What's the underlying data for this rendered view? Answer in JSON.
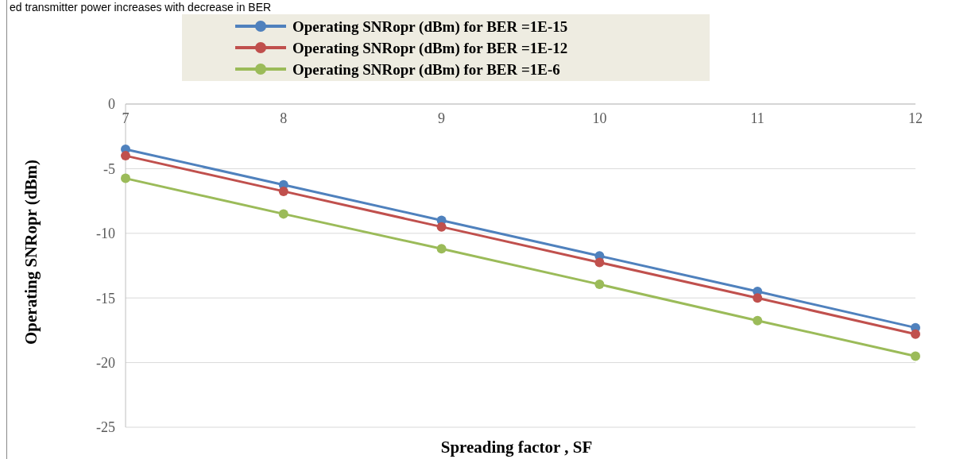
{
  "chart_data": {
    "type": "line",
    "title": "ed transmitter power increases with decrease in BER",
    "xlabel": "Spreading factor , SF",
    "ylabel": "Operating SNRopr (dBm)",
    "x": [
      7,
      8,
      9,
      10,
      11,
      12
    ],
    "series": [
      {
        "name": "Operating SNRopr (dBm) for BER =1E-15",
        "color": "#4f81bd",
        "values": [
          -3.5,
          -6.25,
          -9,
          -11.75,
          -14.5,
          -17.3
        ]
      },
      {
        "name": "Operating SNRopr (dBm) for BER =1E-12",
        "color": "#c0504d",
        "values": [
          -4,
          -6.75,
          -9.5,
          -12.25,
          -15,
          -17.8
        ]
      },
      {
        "name": "Operating SNRopr (dBm) for BER =1E-6",
        "color": "#9bbb59",
        "values": [
          -5.75,
          -8.5,
          -11.2,
          -13.95,
          -16.75,
          -19.5
        ]
      }
    ],
    "xlim": [
      7,
      12
    ],
    "xticks": [
      7,
      8,
      9,
      10,
      11,
      12
    ],
    "ylim": [
      -25,
      0
    ],
    "yticks": [
      -25,
      -20,
      -15,
      -10,
      -5,
      0
    ],
    "grid": "y",
    "legend": "top",
    "marker": "circle",
    "line_style": "solid"
  }
}
